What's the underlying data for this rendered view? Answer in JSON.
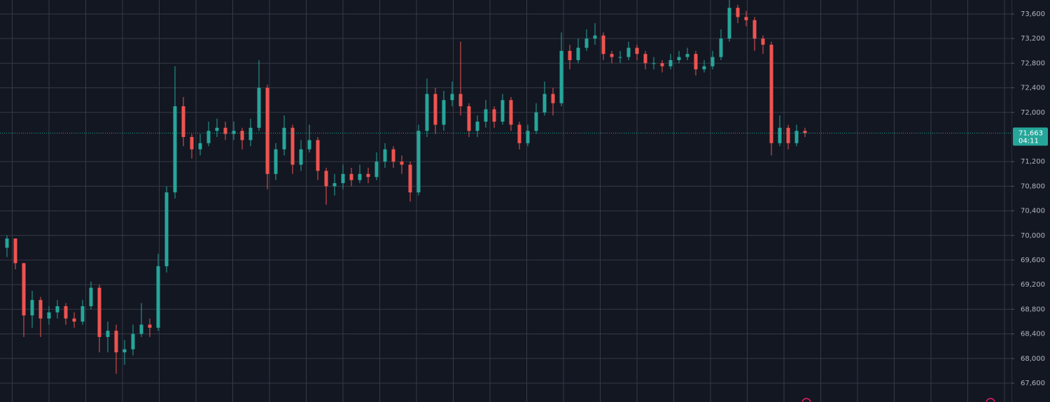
{
  "chart_data": {
    "type": "candlestick",
    "open": [
      69800,
      69950,
      69550,
      68700,
      68950,
      68650,
      68750,
      68850,
      68650,
      68600,
      68850,
      69150,
      68350,
      68450,
      68100,
      68150,
      68400,
      68550,
      68500,
      69500,
      70700,
      72100,
      71600,
      71400,
      71500,
      71700,
      71750,
      71650,
      71700,
      71550,
      71750,
      72400,
      71000,
      71400,
      71750,
      71150,
      71400,
      71550,
      71050,
      70800,
      70850,
      71000,
      70900,
      71000,
      70950,
      71200,
      71400,
      71200,
      71150,
      70700,
      71700,
      72300,
      71800,
      72200,
      72300,
      72100,
      71700,
      71850,
      72050,
      71850,
      72200,
      71800,
      71500,
      71700,
      72000,
      72300,
      72150,
      73000,
      72850,
      73050,
      73200,
      73250,
      72950,
      72900,
      72900,
      73050,
      72950,
      72800,
      72800,
      72750,
      72850,
      72900,
      72950,
      72700,
      72750,
      72900,
      73200,
      73700,
      73550,
      73500,
      73200,
      73100,
      71500,
      71750,
      71500,
      71700
    ],
    "high": [
      70000,
      69950,
      69550,
      69100,
      69000,
      68850,
      68950,
      68900,
      68750,
      68950,
      69250,
      69200,
      68600,
      68550,
      68300,
      68550,
      68900,
      68650,
      69700,
      70800,
      72750,
      72250,
      71650,
      71650,
      71850,
      71900,
      71850,
      71850,
      71750,
      71900,
      72850,
      72450,
      71500,
      71950,
      71800,
      71550,
      71800,
      71600,
      71100,
      71000,
      71150,
      71100,
      71150,
      71100,
      71350,
      71500,
      71450,
      71300,
      71200,
      71800,
      72550,
      72400,
      72350,
      72500,
      73150,
      72150,
      71950,
      72200,
      72100,
      72300,
      72250,
      71850,
      71800,
      72150,
      72500,
      72400,
      73300,
      73100,
      73200,
      73350,
      73450,
      73300,
      73000,
      73000,
      73150,
      73100,
      73000,
      72900,
      72850,
      72950,
      73000,
      73050,
      73000,
      72850,
      73000,
      73350,
      73850,
      73750,
      73650,
      73550,
      73250,
      73150,
      71950,
      71800,
      71800,
      71750
    ],
    "low": [
      69650,
      69450,
      68350,
      68500,
      68350,
      68550,
      68650,
      68550,
      68500,
      68550,
      68800,
      68100,
      68100,
      67750,
      67900,
      68050,
      68350,
      68350,
      68450,
      69400,
      70600,
      71450,
      71250,
      71300,
      71450,
      71600,
      71550,
      71550,
      71400,
      71450,
      71700,
      70750,
      70900,
      71300,
      71000,
      71050,
      71350,
      70900,
      70500,
      70650,
      70750,
      70800,
      70850,
      70850,
      70900,
      71100,
      71100,
      71000,
      70550,
      70650,
      71600,
      71650,
      71700,
      72100,
      71950,
      71600,
      71600,
      71750,
      71750,
      71800,
      71700,
      71400,
      71450,
      71650,
      71950,
      71950,
      72100,
      72700,
      72800,
      73000,
      73100,
      72850,
      72800,
      72800,
      72850,
      72850,
      72700,
      72700,
      72650,
      72700,
      72800,
      72850,
      72600,
      72650,
      72700,
      72850,
      73150,
      73450,
      73400,
      73000,
      72950,
      71300,
      71450,
      71400,
      71450,
      71600
    ],
    "close": [
      69950,
      69550,
      68700,
      68950,
      68650,
      68750,
      68850,
      68650,
      68600,
      68850,
      69150,
      68350,
      68450,
      68100,
      68150,
      68400,
      68550,
      68500,
      69500,
      70700,
      72100,
      71600,
      71400,
      71500,
      71700,
      71750,
      71650,
      71700,
      71550,
      71750,
      72400,
      71000,
      71400,
      71750,
      71150,
      71400,
      71550,
      71050,
      70800,
      70850,
      71000,
      70900,
      71000,
      70950,
      71200,
      71400,
      71200,
      71150,
      70700,
      71700,
      72300,
      71800,
      72200,
      72300,
      72100,
      71700,
      71850,
      72050,
      71850,
      72200,
      71800,
      71500,
      71700,
      72000,
      72300,
      72150,
      73000,
      72850,
      73050,
      73200,
      73250,
      72950,
      72900,
      72900,
      73050,
      72950,
      72800,
      72800,
      72750,
      72850,
      72900,
      72950,
      72700,
      72750,
      72900,
      73200,
      73700,
      73550,
      73500,
      73200,
      73100,
      71500,
      71750,
      71500,
      71700,
      71663
    ],
    "up_color": "#26a69a",
    "down_color": "#ef5350",
    "ylim": [
      67293,
      73827
    ],
    "yticks": [
      {
        "value": 67600,
        "label": "67,600"
      },
      {
        "value": 68000,
        "label": "68,000"
      },
      {
        "value": 68400,
        "label": "68,400"
      },
      {
        "value": 68800,
        "label": "68,800"
      },
      {
        "value": 69200,
        "label": "69,200"
      },
      {
        "value": 69600,
        "label": "69,600"
      },
      {
        "value": 70000,
        "label": "70,000"
      },
      {
        "value": 70400,
        "label": "70,400"
      },
      {
        "value": 70800,
        "label": "70,800"
      },
      {
        "value": 71200,
        "label": "71,200"
      },
      {
        "value": 72000,
        "label": "72,000"
      },
      {
        "value": 72400,
        "label": "72,400"
      },
      {
        "value": 72800,
        "label": "72,800"
      },
      {
        "value": 73200,
        "label": "73,200"
      },
      {
        "value": 73600,
        "label": "73,600"
      }
    ],
    "grid": true,
    "last_price": {
      "value": 71663,
      "label": "71,663"
    },
    "countdown": "04:11"
  }
}
